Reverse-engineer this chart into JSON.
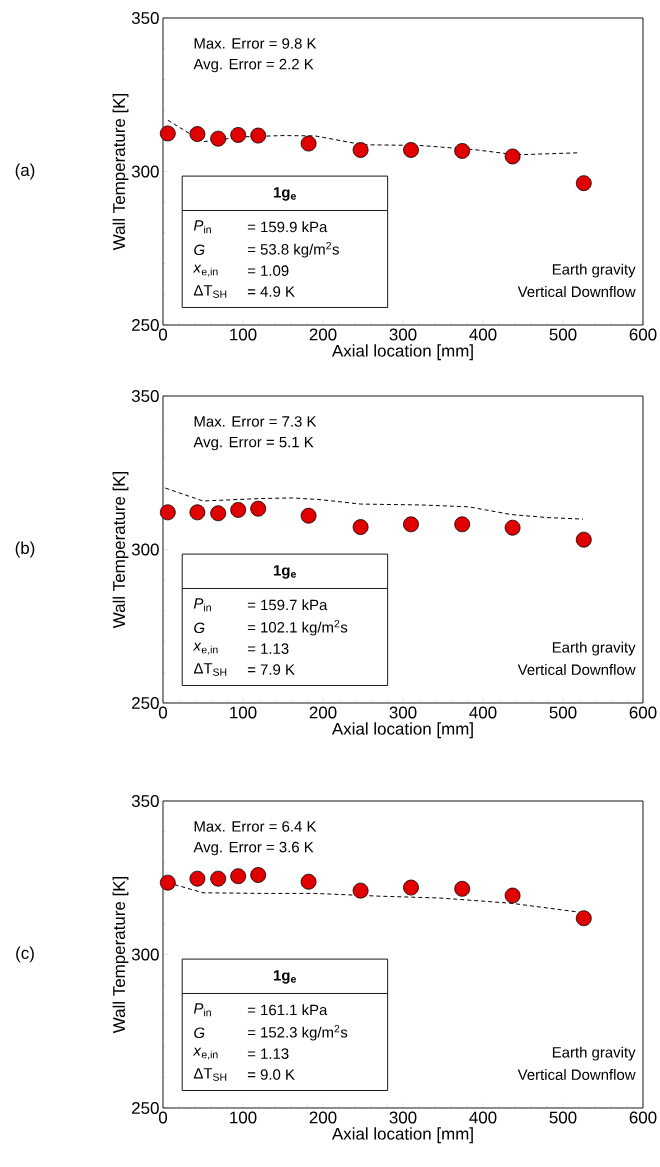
{
  "chart_data": [
    {
      "type": "scatter",
      "title": "(a)",
      "xlabel": "Axial location [mm]",
      "ylabel": "Wall Temperature [K]",
      "xlim": [
        0,
        600
      ],
      "xticks": [
        0,
        100,
        200,
        300,
        400,
        500,
        600
      ],
      "ylim": [
        250,
        350
      ],
      "yticks": [
        250,
        300,
        350
      ],
      "grid": false,
      "annotations": [
        "Max. Error = 9.8 K",
        "Avg. Error = 2.2 K",
        "1g$_{e}$",
        "*P*$_{in}$",
        "= 159.9 kPa",
        "*G*",
        "= 53.8 kg/m$^{2}$s",
        "*x*$_{e,in}$",
        "= 1.09",
        "ΔT$_{SH}$",
        "= 4.9 K",
        "Earth gravity",
        "Vertical Downflow"
      ],
      "series": [
        {
          "type": "scatter",
          "color": "#e00000",
          "marker": "circle",
          "x": [
            6,
            43,
            69,
            94,
            119,
            182,
            247,
            310,
            374,
            437,
            526
          ],
          "values": [
            312.4,
            312.2,
            310.7,
            311.9,
            311.7,
            309.1,
            307.0,
            307.0,
            306.7,
            304.9,
            296.2
          ]
        },
        {
          "type": "line",
          "color": "#000000",
          "marker": "none",
          "line_style": "dashed",
          "x": [
            6,
            50,
            100,
            150,
            190,
            250,
            320,
            390,
            430,
            450,
            520
          ],
          "values": [
            316.7,
            309.7,
            311.3,
            311.7,
            311.6,
            308.7,
            308.5,
            307.1,
            305.8,
            305.5,
            306.1
          ]
        }
      ]
    },
    {
      "type": "scatter",
      "title": "(b)",
      "xlabel": "Axial location [mm]",
      "ylabel": "Wall Temperature [K]",
      "xlim": [
        0,
        600
      ],
      "xticks": [
        0,
        100,
        200,
        300,
        400,
        500,
        600
      ],
      "ylim": [
        250,
        350
      ],
      "yticks": [
        250,
        300,
        350
      ],
      "grid": false,
      "annotations": [
        "Max. Error = 7.3 K",
        "Avg. Error = 5.1 K",
        "1g$_{e}$",
        "*P*$_{in}$",
        "= 159.7 kPa",
        "*G*",
        "= 102.1 kg/m$^{2}$s",
        "*x*$_{e,in}$",
        "= 1.13",
        "ΔT$_{SH}$",
        "= 7.9 K",
        "Earth gravity",
        "Vertical Downflow"
      ],
      "series": [
        {
          "type": "scatter",
          "color": "#e00000",
          "marker": "circle",
          "x": [
            6,
            43,
            69,
            94,
            119,
            182,
            247,
            310,
            374,
            437,
            526
          ],
          "values": [
            312.1,
            312.1,
            311.8,
            312.9,
            313.3,
            311.0,
            307.3,
            308.2,
            308.2,
            307.1,
            303.2
          ]
        },
        {
          "type": "line",
          "color": "#000000",
          "marker": "none",
          "line_style": "dashed",
          "x": [
            3,
            50,
            122,
            162,
            198,
            247,
            323,
            382,
            435,
            480,
            525
          ],
          "values": [
            320.0,
            315.8,
            316.6,
            316.8,
            316.2,
            314.8,
            314.5,
            313.9,
            311.4,
            310.4,
            309.9
          ]
        }
      ]
    },
    {
      "type": "scatter",
      "title": "(c)",
      "xlabel": "Axial location [mm]",
      "ylabel": "Wall Temperature [K]",
      "xlim": [
        0,
        600
      ],
      "xticks": [
        0,
        100,
        200,
        300,
        400,
        500,
        600
      ],
      "ylim": [
        250,
        350
      ],
      "yticks": [
        250,
        300,
        350
      ],
      "grid": false,
      "annotations": [
        "Max. Error = 6.4 K",
        "Avg. Error = 3.6 K",
        "1g$_{e}$",
        "*P*$_{in}$",
        "= 161.1 kPa",
        "*G*",
        "= 152.3 kg/m$^{2}$s",
        "*x*$_{e,in}$",
        "= 1.13",
        "ΔT$_{SH}$",
        "= 9.0 K",
        "Earth gravity",
        "Vertical Downflow"
      ],
      "series": [
        {
          "type": "scatter",
          "color": "#e00000",
          "marker": "circle",
          "x": [
            6,
            43,
            69,
            94,
            119,
            182,
            247,
            310,
            374,
            437,
            526
          ],
          "values": [
            323.4,
            324.7,
            324.7,
            325.5,
            325.9,
            323.7,
            320.8,
            321.8,
            321.4,
            319.2,
            311.8
          ]
        },
        {
          "type": "line",
          "color": "#000000",
          "marker": "none",
          "line_style": "dashed",
          "x": [
            6,
            50,
            122,
            189,
            270,
            346,
            435,
            520
          ],
          "values": [
            323.4,
            320.1,
            319.9,
            319.9,
            319.0,
            318.4,
            316.7,
            313.8
          ]
        }
      ]
    }
  ]
}
